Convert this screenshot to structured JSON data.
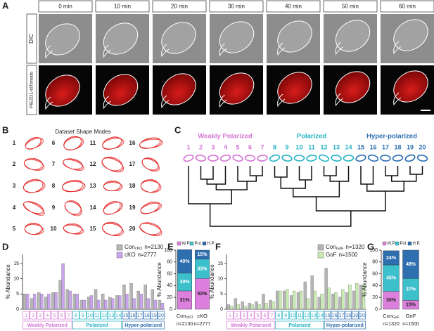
{
  "panels": [
    "A",
    "B",
    "C",
    "D",
    "E",
    "F",
    "G"
  ],
  "time_lapse": {
    "times": [
      "0 min",
      "10 min",
      "20 min",
      "30 min",
      "40 min",
      "50 min",
      "60 min"
    ],
    "rows": [
      "DIC",
      "PIEZO1-tdTomato"
    ]
  },
  "shape_modes": {
    "title": "Dataset Shape Modes",
    "labels": [
      "1",
      "2",
      "3",
      "4",
      "5",
      "6",
      "7",
      "8",
      "9",
      "10",
      "11",
      "12",
      "13",
      "14",
      "15",
      "16",
      "17",
      "18",
      "19",
      "20"
    ]
  },
  "dendrogram": {
    "groups": [
      {
        "label": "Weakly Polarized",
        "color": "#d374d3"
      },
      {
        "label": "Polarized",
        "color": "#22b4c4"
      },
      {
        "label": "Hyper-polarized",
        "color": "#2a6db0"
      }
    ],
    "leaves": [
      "1",
      "2",
      "3",
      "4",
      "5",
      "6",
      "7",
      "8",
      "9",
      "10",
      "11",
      "12",
      "13",
      "14",
      "15",
      "16",
      "17",
      "18",
      "19",
      "20"
    ]
  },
  "chart_data": [
    {
      "type": "bar",
      "ylabel": "% Abundance",
      "ylim": [
        0,
        18
      ],
      "yticks": [
        0,
        5,
        10,
        15
      ],
      "categories": [
        "1",
        "2",
        "3",
        "4",
        "5",
        "6",
        "7",
        "8",
        "9",
        "10",
        "11",
        "12",
        "13",
        "14",
        "15",
        "16",
        "17",
        "18",
        "19",
        "20"
      ],
      "groups": [
        {
          "label": "Weakly Polarized",
          "color": "#d374d3"
        },
        {
          "label": "Polarized",
          "color": "#22b4c4"
        },
        {
          "label": "Hyper-polarized",
          "color": "#2a6db0"
        }
      ],
      "series": [
        {
          "name": "Con",
          "name_sub": "cKO",
          "n": "n=2130",
          "color": "#b5b5b5",
          "values": [
            5,
            3.5,
            5.5,
            4,
            5.5,
            9.5,
            6.5,
            5,
            3,
            4,
            6.5,
            5,
            4,
            4.5,
            8,
            8.5,
            6,
            8,
            6.5,
            3
          ]
        },
        {
          "name": "cKO",
          "n": "n=2777",
          "color": "#c9a3ee",
          "values": [
            5,
            5,
            5,
            5,
            5.5,
            15,
            6,
            5,
            3,
            4.5,
            3,
            3,
            3.5,
            4.5,
            5,
            3.5,
            5,
            3.5,
            3,
            2
          ]
        }
      ]
    },
    {
      "type": "stacked_bar",
      "ylabel": "% Abundance",
      "ylim": [
        0,
        100
      ],
      "yticks": [
        0,
        20,
        40,
        60,
        80,
        100
      ],
      "categories": [
        "Con",
        "cKO"
      ],
      "category_subs": [
        "cKO",
        null
      ],
      "category_n": [
        "n=2130",
        "n=2777"
      ],
      "series": [
        {
          "name": "W.P",
          "color": "#dd7fdd",
          "values": [
            31,
            52
          ],
          "value_labels": [
            "31%",
            "52%"
          ]
        },
        {
          "name": "Pol.",
          "color": "#3cc0cc",
          "values": [
            30,
            33
          ],
          "value_labels": [
            "30%",
            "33%"
          ]
        },
        {
          "name": "H.P.",
          "color": "#2e6fb0",
          "values": [
            40,
            15
          ],
          "value_labels": [
            "40%",
            "15%"
          ]
        }
      ]
    },
    {
      "type": "bar",
      "ylabel": "% Abundance",
      "ylim": [
        0,
        18
      ],
      "yticks": [
        0,
        5,
        10,
        15
      ],
      "categories": [
        "1",
        "2",
        "3",
        "4",
        "5",
        "6",
        "7",
        "8",
        "9",
        "10",
        "11",
        "12",
        "13",
        "14",
        "15",
        "16",
        "17",
        "18",
        "19",
        "20"
      ],
      "groups": [
        {
          "label": "Weakly Polarized",
          "color": "#d374d3"
        },
        {
          "label": "Polarized",
          "color": "#22b4c4"
        },
        {
          "label": "Hyper-polarized",
          "color": "#2a6db0"
        }
      ],
      "series": [
        {
          "name": "Con",
          "name_sub": "GoF",
          "n": "n=1320",
          "color": "#b5b5b5",
          "values": [
            1.5,
            3.5,
            2.5,
            2,
            2.5,
            5,
            3,
            6,
            6,
            4.5,
            5.5,
            9,
            11,
            4,
            13.5,
            5,
            4,
            5.5,
            6,
            8
          ]
        },
        {
          "name": "GoF",
          "n": "n=1500",
          "color": "#c8ecb0",
          "values": [
            1,
            1.5,
            1,
            1.5,
            1.5,
            2,
            2.5,
            6,
            6.5,
            6,
            6,
            3.5,
            6,
            5,
            7,
            5.5,
            6.5,
            8,
            8.5,
            8
          ]
        }
      ]
    },
    {
      "type": "stacked_bar",
      "ylabel": "% Abundance",
      "ylim": [
        0,
        100
      ],
      "yticks": [
        0,
        20,
        40,
        60,
        80,
        100
      ],
      "categories": [
        "Con",
        "GoF"
      ],
      "category_subs": [
        "GoF",
        null
      ],
      "category_n": [
        "n=1320",
        "n=1500"
      ],
      "series": [
        {
          "name": "W.P",
          "color": "#dd7fdd",
          "values": [
            30,
            15
          ],
          "value_labels": [
            "30%",
            "15%"
          ]
        },
        {
          "name": "Pol.",
          "color": "#3cc0cc",
          "values": [
            45,
            37
          ],
          "value_labels": [
            "45%",
            "37%"
          ]
        },
        {
          "name": "H.P.",
          "color": "#2e6fb0",
          "values": [
            24,
            48
          ],
          "value_labels": [
            "24%",
            "48%"
          ]
        }
      ]
    }
  ]
}
